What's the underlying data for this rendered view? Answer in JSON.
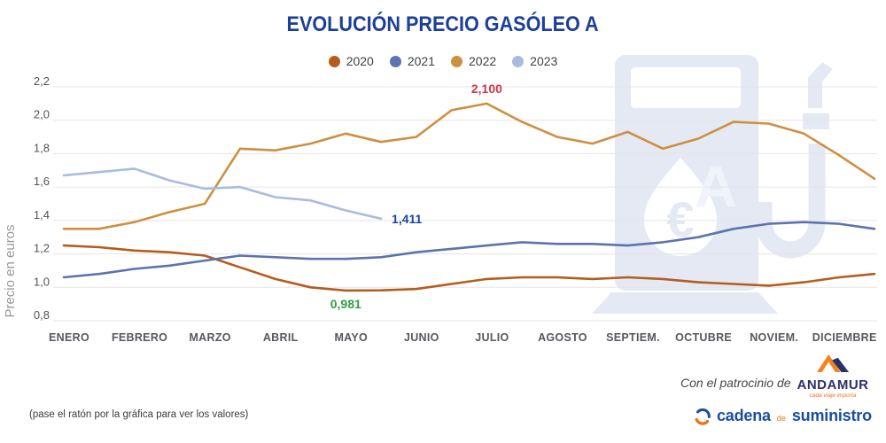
{
  "title": "EVOLUCIÓN PRECIO GASÓLEO A",
  "footer": {
    "hover_note": "(pase el ratón por la gráfica para ver los valores)",
    "sponsor_prefix": "Con el patrocinio de",
    "sponsor_name": "ANDAMUR",
    "sponsor_tagline": "cada viaje importa",
    "publisher_word1": "cadena",
    "publisher_word2": "de",
    "publisher_word3": "suministro"
  },
  "colors": {
    "title_blue": "#1c3f97",
    "gridline": "#e5e5e5",
    "watermark": "#e4e9f4",
    "annotation_red": "#cc3848",
    "annotation_blue": "#1747a0",
    "annotation_green": "#2f9e41",
    "andamur_navy": "#2b3166",
    "andamur_orange": "#f07d1a",
    "cadena_blue": "#1b4ea0",
    "cadena_orange": "#e87722"
  },
  "chart_data": {
    "type": "line",
    "title": "EVOLUCIÓN PRECIO GASÓLEO A",
    "xlabel": "",
    "ylabel": "Precio en euros",
    "ylim": [
      0.8,
      2.2
    ],
    "grid": true,
    "legend_position": "top",
    "x_unit": "half-month steps (2 points per month), January to December",
    "categories": [
      "ENERO",
      "FEBRERO",
      "MARZO",
      "ABRIL",
      "MAYO",
      "JUNIO",
      "JULIO",
      "AGOSTO",
      "SEPTIEM.",
      "OCTUBRE",
      "NOVIEM.",
      "DICIEMBRE"
    ],
    "y_ticks": [
      {
        "value": 0.8,
        "label": "0,8"
      },
      {
        "value": 1.0,
        "label": "1,0"
      },
      {
        "value": 1.2,
        "label": "1,2"
      },
      {
        "value": 1.4,
        "label": "1,4"
      },
      {
        "value": 1.6,
        "label": "1,6"
      },
      {
        "value": 1.8,
        "label": "1,8"
      },
      {
        "value": 2.0,
        "label": "2,0"
      },
      {
        "value": 2.2,
        "label": "2,2"
      }
    ],
    "series": [
      {
        "name": "2020",
        "color": "#b55d1e",
        "values": [
          1.25,
          1.24,
          1.22,
          1.21,
          1.19,
          1.12,
          1.05,
          1.0,
          0.981,
          0.982,
          0.99,
          1.02,
          1.05,
          1.06,
          1.06,
          1.05,
          1.06,
          1.05,
          1.03,
          1.02,
          1.01,
          1.03,
          1.06,
          1.08
        ]
      },
      {
        "name": "2021",
        "color": "#5c74ae",
        "values": [
          1.06,
          1.08,
          1.11,
          1.13,
          1.16,
          1.19,
          1.18,
          1.17,
          1.17,
          1.18,
          1.21,
          1.23,
          1.25,
          1.27,
          1.26,
          1.26,
          1.25,
          1.27,
          1.3,
          1.35,
          1.38,
          1.39,
          1.38,
          1.35
        ]
      },
      {
        "name": "2022",
        "color": "#cd9040",
        "values": [
          1.35,
          1.35,
          1.39,
          1.45,
          1.5,
          1.83,
          1.82,
          1.86,
          1.92,
          1.87,
          1.9,
          2.06,
          2.1,
          1.99,
          1.9,
          1.86,
          1.93,
          1.83,
          1.89,
          1.99,
          1.98,
          1.92,
          1.79,
          1.65
        ]
      },
      {
        "name": "2023",
        "color": "#a9bcdf",
        "values": [
          1.67,
          1.69,
          1.71,
          1.64,
          1.59,
          1.6,
          1.54,
          1.52,
          1.46,
          1.411
        ]
      }
    ],
    "annotations": [
      {
        "text": "2,100",
        "value": 2.1,
        "series": "2022",
        "point_index": 12,
        "placement": "above",
        "color": "#cc3848"
      },
      {
        "text": "1,411",
        "value": 1.411,
        "series": "2023",
        "point_index": 9,
        "placement": "right",
        "color": "#1747a0"
      },
      {
        "text": "0,981",
        "value": 0.981,
        "series": "2020",
        "point_index": 8,
        "placement": "below",
        "color": "#2f9e41"
      }
    ]
  }
}
